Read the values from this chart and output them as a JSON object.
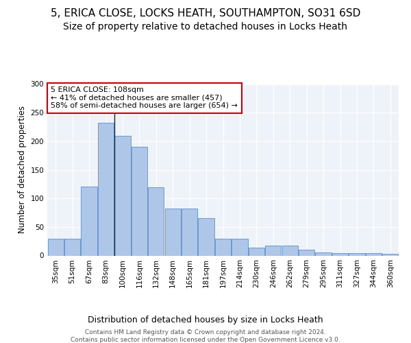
{
  "title1": "5, ERICA CLOSE, LOCKS HEATH, SOUTHAMPTON, SO31 6SD",
  "title2": "Size of property relative to detached houses in Locks Heath",
  "xlabel": "Distribution of detached houses by size in Locks Heath",
  "ylabel": "Number of detached properties",
  "categories": [
    "35sqm",
    "51sqm",
    "67sqm",
    "83sqm",
    "100sqm",
    "116sqm",
    "132sqm",
    "148sqm",
    "165sqm",
    "181sqm",
    "197sqm",
    "214sqm",
    "230sqm",
    "246sqm",
    "262sqm",
    "279sqm",
    "295sqm",
    "311sqm",
    "327sqm",
    "344sqm",
    "360sqm"
  ],
  "values": [
    30,
    30,
    121,
    232,
    210,
    190,
    120,
    82,
    82,
    65,
    30,
    30,
    14,
    17,
    17,
    10,
    6,
    4,
    4,
    4,
    3
  ],
  "bar_color": "#aec6e8",
  "bar_edge_color": "#5b8fc9",
  "annotation_box_color": "#ffffff",
  "annotation_border_color": "#cc0000",
  "annotation_text_line1": "5 ERICA CLOSE: 108sqm",
  "annotation_text_line2": "← 41% of detached houses are smaller (457)",
  "annotation_text_line3": "58% of semi-detached houses are larger (654) →",
  "vline_x": 3.5,
  "ylim": [
    0,
    300
  ],
  "yticks": [
    0,
    50,
    100,
    150,
    200,
    250,
    300
  ],
  "footer1": "Contains HM Land Registry data © Crown copyright and database right 2024.",
  "footer2": "Contains public sector information licensed under the Open Government Licence v3.0.",
  "bg_color": "#eef2f9",
  "title1_fontsize": 11,
  "title2_fontsize": 10,
  "xlabel_fontsize": 9,
  "ylabel_fontsize": 8.5,
  "tick_fontsize": 7.5,
  "annotation_fontsize": 8,
  "footer_fontsize": 6.5
}
